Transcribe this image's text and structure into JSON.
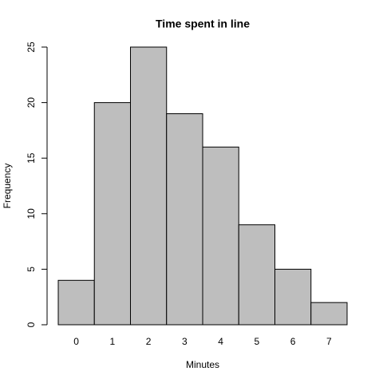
{
  "chart_data": {
    "type": "bar",
    "title": "Time spent in line",
    "x_label": "Minutes",
    "y_label": "Frequency",
    "categories": [
      "0",
      "1",
      "2",
      "3",
      "4",
      "5",
      "6",
      "7"
    ],
    "values": [
      4,
      20,
      25,
      19,
      16,
      9,
      5,
      2
    ],
    "color": "#bebebe",
    "ylim": [
      0,
      25
    ],
    "yticks": [
      0,
      5,
      10,
      15,
      20,
      25
    ]
  }
}
